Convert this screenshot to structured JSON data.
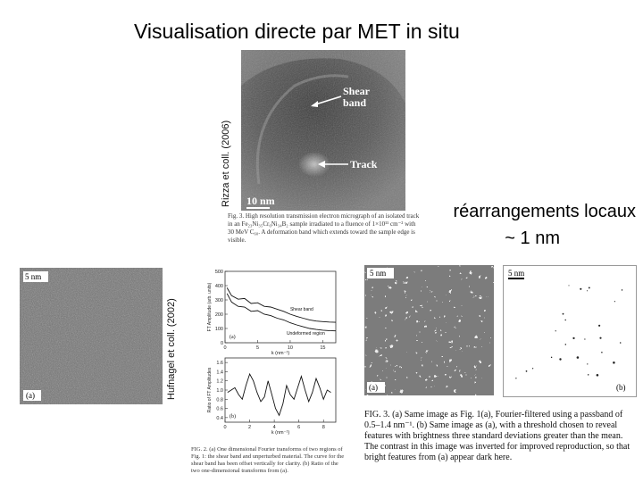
{
  "slide": {
    "title": "Visualisation directe par MET in situ",
    "credit_top": "Rizza et coll. (2006)",
    "credit_bottom": "Hufnagel et coll. (2002)",
    "note_line1": "réarrangements locaux",
    "note_line2": "~ 1 nm"
  },
  "fig_rizza": {
    "shear_label": "Shear band",
    "track_label": "Track",
    "scale_label": "10 nm",
    "caption": "Fig. 3. High resolution transmission electron micrograph of an isolated track in an Fe₂₃Ni₃₅Cr₆Ni₃₄B₂ sample irradiated to a fluence of 1×10¹¹ cm⁻² with 30 MeV C₆₀. A deformation band which extends toward the sample edge is visible."
  },
  "fig_hufnagel_tem": {
    "scale_label": "5 nm",
    "panel_label": "(a)"
  },
  "fig_hufnagel_plot": {
    "panel_a": {
      "y_label": "FT Amplitude (arb. units)",
      "y_ticks": [
        "500",
        "400",
        "300",
        "200",
        "100",
        "0"
      ],
      "x_ticks": [
        "0",
        "5",
        "10",
        "15"
      ],
      "x_label": "k (nm⁻¹)",
      "legend_shear": "Shear band",
      "legend_undeformed": "Undeformed region",
      "panel_label": "(a)"
    },
    "panel_b": {
      "y_label": "Ratio of FT Amplitudes",
      "y_ticks": [
        "1.6",
        "1.4",
        "1.2",
        "1.0",
        "0.8",
        "0.6",
        "0.4"
      ],
      "x_ticks": [
        "0",
        "2",
        "4",
        "6",
        "8"
      ],
      "x_label": "k (nm⁻¹)",
      "panel_label": "(b)"
    },
    "caption": "FIG. 2. (a) One dimensional Fourier transforms of two regions of Fig. 1: the shear band and unperturbed material. The curve for the shear band has been offset vertically for clarity. (b) Ratio of the two one-dimensional transforms from (a)."
  },
  "fig_filtered": {
    "scale_a": "5 nm",
    "scale_b": "5 nm",
    "label_a": "(a)",
    "label_b": "(b)",
    "caption": "FIG. 3. (a) Same image as Fig. 1(a), Fourier-filtered using a passband of 0.5–1.4 nm⁻¹. (b) Same image as (a), with a threshold chosen to reveal features with brightness three standard deviations greater than the mean. The contrast in this image was inverted for improved reproduction, so that bright features from (a) appear dark here."
  },
  "chart_data": [
    {
      "type": "line",
      "title": "",
      "xlabel": "k (nm⁻¹)",
      "ylabel": "FT Amplitude (arb. units)",
      "xlim": [
        0,
        17
      ],
      "ylim": [
        0,
        500
      ],
      "series": [
        {
          "name": "Shear band",
          "x": [
            0.3,
            1,
            2,
            3,
            4,
            5,
            6,
            7,
            8,
            9,
            10,
            11,
            12,
            13,
            14,
            15,
            16,
            17
          ],
          "y": [
            385,
            330,
            305,
            310,
            275,
            280,
            255,
            250,
            235,
            220,
            200,
            185,
            172,
            160,
            152,
            148,
            145,
            143
          ]
        },
        {
          "name": "Undeformed region",
          "x": [
            0.3,
            1,
            2,
            3,
            4,
            5,
            6,
            7,
            8,
            9,
            10,
            11,
            12,
            13,
            14,
            15,
            16,
            17
          ],
          "y": [
            345,
            285,
            255,
            250,
            220,
            225,
            200,
            190,
            172,
            160,
            140,
            125,
            112,
            100,
            93,
            88,
            85,
            83
          ]
        }
      ]
    },
    {
      "type": "line",
      "title": "",
      "xlabel": "k (nm⁻¹)",
      "ylabel": "Ratio of FT Amplitudes",
      "xlim": [
        0,
        9
      ],
      "ylim": [
        0.3,
        1.7
      ],
      "series": [
        {
          "x": [
            0.2,
            0.5,
            0.8,
            1.1,
            1.4,
            1.7,
            2.0,
            2.3,
            2.6,
            2.9,
            3.2,
            3.5,
            3.8,
            4.1,
            4.4,
            4.7,
            5.0,
            5.3,
            5.6,
            5.9,
            6.2,
            6.5,
            6.8,
            7.1,
            7.4,
            7.7,
            8.0,
            8.3,
            8.6
          ],
          "y": [
            0.95,
            1.0,
            1.05,
            0.9,
            0.8,
            1.1,
            1.35,
            1.2,
            0.95,
            0.75,
            0.85,
            1.2,
            0.9,
            0.6,
            0.45,
            0.7,
            1.1,
            0.9,
            0.8,
            1.05,
            1.3,
            1.0,
            0.75,
            0.95,
            1.25,
            1.05,
            0.8,
            1.0,
            0.95
          ]
        }
      ]
    }
  ]
}
